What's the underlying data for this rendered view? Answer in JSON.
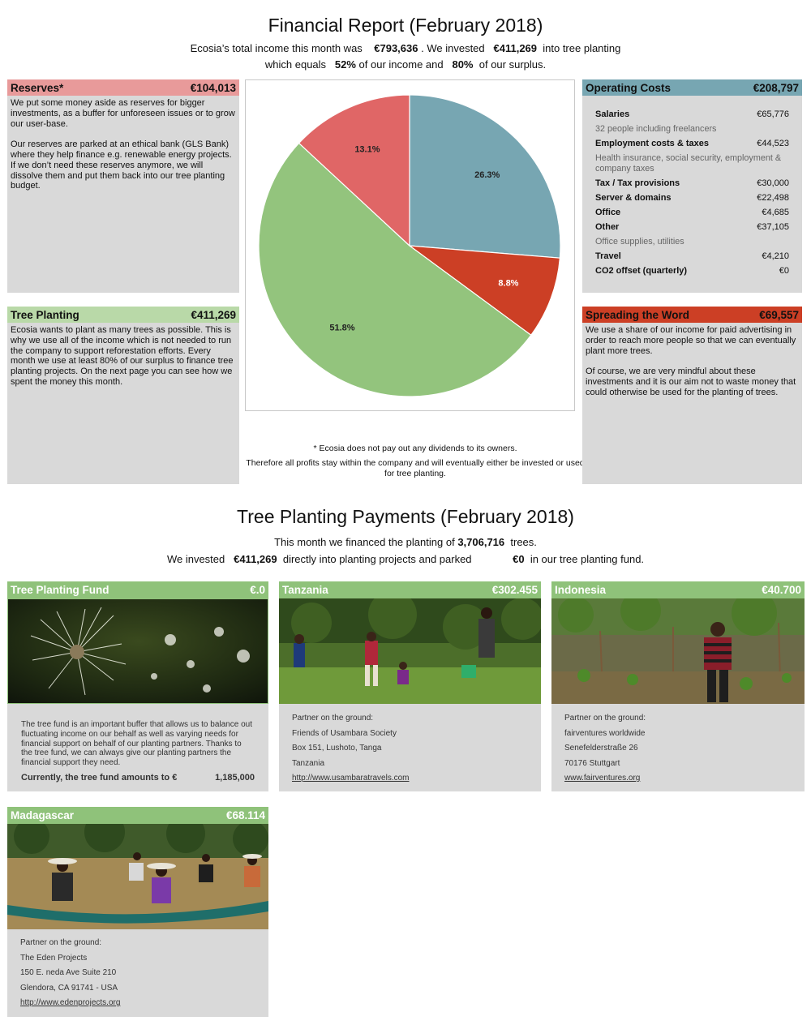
{
  "report": {
    "title": "Financial Report (February 2018)",
    "income_pre": "Ecosia’s total income this month was",
    "income_value": "€793,636",
    "invested_pre": ". We invested",
    "invested_value": "€411,269",
    "invested_post": "into tree planting",
    "equals_pre": "which equals",
    "pct_income": "52%",
    "equals_mid": "of our income and",
    "pct_surplus": "80%",
    "equals_post": "of our surplus."
  },
  "reserves": {
    "title": "Reserves*",
    "amount": "€104,013",
    "color": "#e89a9a",
    "paragraphs": [
      "We put some money aside as reserves for bigger investments, as a buffer for unforeseen issues or to grow our user-base.",
      "Our reserves are parked at an ethical bank (GLS Bank) where they help finance e.g. renewable energy projects. If we don’t need these reserves anymore, we will dissolve them and put them back into our tree planting budget."
    ]
  },
  "tree_planting": {
    "title": "Tree Planting",
    "amount": "€411,269",
    "color": "#b9d9a8",
    "paragraphs": [
      "Ecosia wants to plant as many trees as possible. This is why we use all of the income which is not needed to run the company to support reforestation efforts. Every month we use at least 80% of our surplus to finance tree planting projects. On the next page you can see how we spent the money this month."
    ]
  },
  "operating_costs": {
    "title": "Operating Costs",
    "amount": "€208,797",
    "color": "#77a6b2",
    "rows": [
      {
        "label": "Salaries",
        "value": "€65,776",
        "note": "32 people including freelancers"
      },
      {
        "label": "Employment costs & taxes",
        "value": "€44,523",
        "note": "Health insurance, social security, employment & company taxes"
      },
      {
        "label": "Tax / Tax provisions",
        "value": "€30,000",
        "note": ""
      },
      {
        "label": "Server & domains",
        "value": "€22,498",
        "note": ""
      },
      {
        "label": "Office",
        "value": "€4,685",
        "note": ""
      },
      {
        "label": "Other",
        "value": "€37,105",
        "note": "Office supplies, utilities"
      },
      {
        "label": "Travel",
        "value": "€4,210",
        "note": ""
      },
      {
        "label": "CO2 offset (quarterly)",
        "value": "€0",
        "note": ""
      }
    ]
  },
  "spreading": {
    "title": "Spreading the Word",
    "amount": "€69,557",
    "color": "#cc3f25",
    "paragraphs": [
      "We use a share of our income for paid advertising in order to reach more people so that we can eventually plant more trees.",
      "Of course, we are very mindful about these investments and it is our aim not to waste money that could otherwise be used for the planting of trees."
    ]
  },
  "chart_data": {
    "type": "pie",
    "slices": [
      {
        "label": "26.3%",
        "value": 26.3,
        "color": "#77a6b2"
      },
      {
        "label": "8.8%",
        "value": 8.8,
        "color": "#cc3f25"
      },
      {
        "label": "51.8%",
        "value": 51.8,
        "color": "#93c47d"
      },
      {
        "label": "13.1%",
        "value": 13.1,
        "color": "#e06666"
      }
    ]
  },
  "footnote": {
    "line1": "* Ecosia does not pay out any dividends to its owners.",
    "line2": "Therefore all profits stay within the company and will eventually either be invested or used for tree planting."
  },
  "payments": {
    "title": "Tree Planting Payments (February 2018)",
    "trees_pre": "This month we financed the planting of",
    "trees_value": "3,706,716",
    "trees_post": "trees.",
    "inv_pre": "We invested",
    "inv_value": "€411,269",
    "inv_mid": "directly into planting projects and parked",
    "fund_value": "€0",
    "inv_post": "in our tree planting fund."
  },
  "fund_card": {
    "title": "Tree Planting Fund",
    "amount": "€.0",
    "text": "The tree fund is an important buffer that allows us to balance out fluctuating income on our behalf as well as varying needs for financial support on behalf of our planting partners. Thanks to the tree fund, we can always give our planting partners the financial support they need.",
    "total_label": "Currently, the tree fund amounts to €",
    "total_value": "1,185,000"
  },
  "tanzania": {
    "title": "Tanzania",
    "amount": "€302.455",
    "lines": [
      "Partner on the ground:",
      "Friends of Usambara Society",
      "Box 151, Lushoto, Tanga",
      "Tanzania"
    ],
    "link": "http://www.usambaratravels.com"
  },
  "indonesia": {
    "title": "Indonesia",
    "amount": "€40.700",
    "lines": [
      "Partner on the ground:",
      "fairventures worldwide",
      "Senefelderstraße 26",
      "70176 Stuttgart"
    ],
    "link": "www.fairventures.org"
  },
  "madagascar": {
    "title": "Madagascar",
    "amount": "€68.114",
    "lines": [
      "Partner on the ground:",
      "The Eden Projects",
      "150 E. neda Ave Suite 210",
      "Glendora, CA 91741 - USA"
    ],
    "link": "http://www.edenprojects.org"
  }
}
